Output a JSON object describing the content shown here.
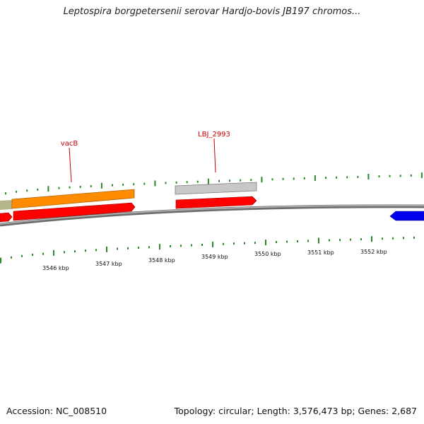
{
  "title": "Leptospira borgpetersenii serovar Hardjo-bovis JB197 chromos...",
  "footer": {
    "accession": "Accession: NC_008510",
    "summary": "Topology: circular; Length: 3,576,473 bp; Genes: 2,687"
  },
  "colors": {
    "backbone": "#8a8a8a",
    "ticks": "#2a8a2a",
    "label": "#cc0000",
    "forward_cds": "#ff0000",
    "reverse_cds": "#0000ee",
    "gene_orange": "#ff8c00",
    "gene_olive": "#b5b58a",
    "gene_gray": "#c0c0c0"
  },
  "scale": {
    "unit": "kbp",
    "labels": [
      "3546 kbp",
      "3547 kbp",
      "3548 kbp",
      "3549 kbp",
      "3550 kbp",
      "3551 kbp",
      "3552 kbp"
    ]
  },
  "gene_labels": [
    "vacB",
    "LBJ_2993"
  ]
}
